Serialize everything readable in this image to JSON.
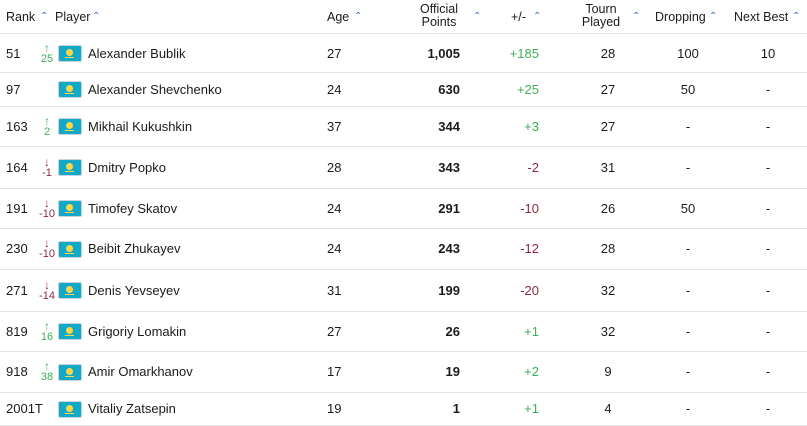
{
  "headers": {
    "rank": "Rank",
    "player": "Player",
    "age": "Age",
    "points_line1": "Official",
    "points_line2": "Points",
    "plusminus": "+/-",
    "tourn_line1": "Tourn",
    "tourn_line2": "Played",
    "dropping": "Dropping",
    "next_best": "Next Best",
    "sort_icon": "chevron-up-icon"
  },
  "colors": {
    "positive": "#3fae5a",
    "negative": "#8b2a3e",
    "accent": "#3a6fd8"
  },
  "rows": [
    {
      "rank": "51",
      "move_dir": "up",
      "move": "25",
      "player": "Alexander Bublik",
      "age": "27",
      "points": "1,005",
      "plusminus": "+185",
      "tourn": "28",
      "dropping": "100",
      "next_best": "10"
    },
    {
      "rank": "97",
      "move_dir": "",
      "move": "",
      "player": "Alexander Shevchenko",
      "age": "24",
      "points": "630",
      "plusminus": "+25",
      "tourn": "27",
      "dropping": "50",
      "next_best": "-"
    },
    {
      "rank": "163",
      "move_dir": "up",
      "move": "2",
      "player": "Mikhail Kukushkin",
      "age": "37",
      "points": "344",
      "plusminus": "+3",
      "tourn": "27",
      "dropping": "-",
      "next_best": "-"
    },
    {
      "rank": "164",
      "move_dir": "down",
      "move": "-1",
      "player": "Dmitry Popko",
      "age": "28",
      "points": "343",
      "plusminus": "-2",
      "tourn": "31",
      "dropping": "-",
      "next_best": "-"
    },
    {
      "rank": "191",
      "move_dir": "down",
      "move": "-10",
      "player": "Timofey Skatov",
      "age": "24",
      "points": "291",
      "plusminus": "-10",
      "tourn": "26",
      "dropping": "50",
      "next_best": "-"
    },
    {
      "rank": "230",
      "move_dir": "down",
      "move": "-10",
      "player": "Beibit Zhukayev",
      "age": "24",
      "points": "243",
      "plusminus": "-12",
      "tourn": "28",
      "dropping": "-",
      "next_best": "-"
    },
    {
      "rank": "271",
      "move_dir": "down",
      "move": "-14",
      "player": "Denis Yevseyev",
      "age": "31",
      "points": "199",
      "plusminus": "-20",
      "tourn": "32",
      "dropping": "-",
      "next_best": "-"
    },
    {
      "rank": "819",
      "move_dir": "up",
      "move": "16",
      "player": "Grigoriy Lomakin",
      "age": "27",
      "points": "26",
      "plusminus": "+1",
      "tourn": "32",
      "dropping": "-",
      "next_best": "-"
    },
    {
      "rank": "918",
      "move_dir": "up",
      "move": "38",
      "player": "Amir Omarkhanov",
      "age": "17",
      "points": "19",
      "plusminus": "+2",
      "tourn": "9",
      "dropping": "-",
      "next_best": "-"
    },
    {
      "rank": "2001T",
      "move_dir": "",
      "move": "",
      "player": "Vitaliy Zatsepin",
      "age": "19",
      "points": "1",
      "plusminus": "+1",
      "tourn": "4",
      "dropping": "-",
      "next_best": "-"
    }
  ]
}
